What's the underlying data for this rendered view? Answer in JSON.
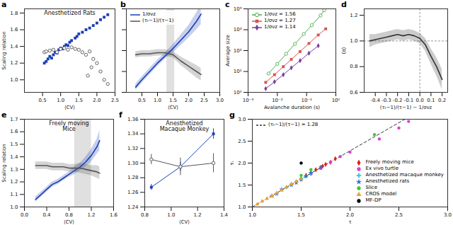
{
  "chart_data": [
    {
      "type": "scatter",
      "panel": "a",
      "annotation": "Anesthetized Rats",
      "x_label": "⟨CV⟩",
      "y_label": "Scaling relation",
      "xlim": [
        0,
        2.5
      ],
      "xticks": [
        0.5,
        {
          "value": 1,
          "label": "1.0"
        },
        1.5,
        {
          "value": 2,
          "label": "2.0"
        },
        2.5
      ],
      "ylim": [
        0.85,
        1.85
      ],
      "yticks": [
        {
          "value": 1,
          "label": "1.0"
        },
        1.2,
        1.4,
        1.6,
        1.8
      ],
      "series": [
        {
          "color": "#1a3fb5",
          "marker": "square",
          "x": [
            0.55,
            0.6,
            0.65,
            0.7,
            0.75,
            0.8,
            0.85,
            0.9,
            0.95,
            1.0,
            1.05,
            1.1,
            1.15,
            1.2,
            1.25,
            1.3,
            1.4,
            1.45,
            1.5,
            1.6,
            1.7,
            1.8,
            1.9,
            2.0,
            2.1,
            2.2,
            2.3
          ],
          "values": [
            1.2,
            1.22,
            1.25,
            1.28,
            1.26,
            1.3,
            1.33,
            1.32,
            1.36,
            1.38,
            1.37,
            1.4,
            1.42,
            1.41,
            1.45,
            1.47,
            1.5,
            1.52,
            1.55,
            1.57,
            1.6,
            1.62,
            1.65,
            1.68,
            1.72,
            1.75,
            1.78
          ]
        },
        {
          "color": "#555555",
          "marker": "open_circle",
          "x": [
            0.55,
            0.6,
            0.7,
            0.8,
            0.9,
            1.0,
            1.1,
            1.2,
            1.3,
            1.4,
            1.5,
            1.6,
            1.7,
            1.75,
            1.8,
            1.85,
            1.9,
            2.0,
            2.1,
            2.2,
            2.3
          ],
          "values": [
            1.33,
            1.34,
            1.35,
            1.36,
            1.33,
            1.37,
            1.38,
            1.36,
            1.39,
            1.37,
            1.36,
            1.33,
            1.3,
            1.05,
            1.34,
            1.15,
            1.25,
            1.2,
            1.1,
            1.0,
            0.95
          ]
        }
      ]
    },
    {
      "type": "line",
      "panel": "b",
      "x_label": "⟨CV⟩",
      "tick_labels": "x",
      "legend": "top-left",
      "xlim": [
        0,
        3
      ],
      "xticks": [
        0.5,
        {
          "value": 1,
          "label": "1.0"
        },
        1.5,
        {
          "value": 2,
          "label": "2.0"
        },
        2.5,
        {
          "value": 3,
          "label": "3.0"
        }
      ],
      "ylim": [
        1,
        1.8
      ],
      "yticks": [
        1,
        1.2,
        1.4,
        1.6,
        1.8
      ],
      "highlight_x": [
        1.3,
        1.55
      ],
      "x": [
        0.3,
        0.5,
        0.75,
        1.0,
        1.25,
        1.5,
        1.75,
        2.0,
        2.25,
        2.4
      ],
      "series": [
        {
          "name": "1/σνz",
          "color": "#1a3fb5",
          "values": [
            1.05,
            1.12,
            1.2,
            1.28,
            1.35,
            1.42,
            1.5,
            1.58,
            1.68,
            1.75
          ],
          "lower": [
            1.02,
            1.09,
            1.17,
            1.25,
            1.32,
            1.38,
            1.45,
            1.52,
            1.6,
            1.65
          ],
          "upper": [
            1.08,
            1.15,
            1.23,
            1.31,
            1.38,
            1.46,
            1.55,
            1.64,
            1.76,
            1.85
          ]
        },
        {
          "name": "(τₜ−1)/(τ−1)",
          "color": "#555555",
          "values": [
            1.36,
            1.37,
            1.37,
            1.38,
            1.38,
            1.36,
            1.3,
            1.25,
            1.2,
            1.17
          ],
          "lower": [
            1.33,
            1.34,
            1.34,
            1.35,
            1.35,
            1.33,
            1.26,
            1.2,
            1.14,
            1.11
          ],
          "upper": [
            1.39,
            1.4,
            1.4,
            1.41,
            1.41,
            1.39,
            1.34,
            1.3,
            1.26,
            1.23
          ]
        }
      ]
    },
    {
      "type": "line",
      "panel": "c",
      "log": true,
      "legend": "top-left",
      "x_label": "Avalanche duration (s)",
      "y_label": "Average size",
      "xlim": [
        0.001,
        1
      ],
      "xticks": [
        {
          "value": 0.001,
          "label": "10⁻³"
        },
        {
          "value": 0.01,
          "label": "10⁻²"
        },
        {
          "value": 0.1,
          "label": "10⁻¹"
        },
        {
          "value": 1,
          "label": "10⁰"
        }
      ],
      "ylim": [
        1,
        10000
      ],
      "yticks": [
        {
          "value": 1,
          "label": "10⁰"
        },
        {
          "value": 10,
          "label": "10¹"
        },
        {
          "value": 100,
          "label": "10²"
        },
        {
          "value": 1000,
          "label": "10³"
        },
        {
          "value": 10000,
          "label": "10⁴"
        }
      ],
      "series": [
        {
          "name": "1/σνz = 1.56",
          "color": "#4caf50",
          "marker": "open_circle",
          "x": [
            0.005,
            0.01,
            0.02,
            0.04,
            0.08,
            0.15,
            0.3,
            0.4
          ],
          "values": [
            8,
            23,
            70,
            210,
            620,
            1650,
            4800,
            8500
          ]
        },
        {
          "name": "1/σνz = 1.27",
          "color": "#d9534f",
          "marker": "square",
          "x": [
            0.004,
            0.008,
            0.016,
            0.03,
            0.06,
            0.12,
            0.25,
            0.45
          ],
          "values": [
            3,
            7,
            17,
            38,
            90,
            220,
            560,
            1100
          ]
        },
        {
          "name": "1/σνz = 1.14",
          "color": "#7b3fa0",
          "marker": "diamond",
          "x": [
            0.004,
            0.008,
            0.016,
            0.03,
            0.06,
            0.12,
            0.25
          ],
          "values": [
            1.5,
            3.2,
            7,
            15,
            33,
            75,
            170
          ]
        }
      ]
    },
    {
      "type": "line",
      "panel": "d",
      "x_label": "(τₜ−1)/(τ−1) − 1/σνz",
      "y_label": "⟨α⟩",
      "xlim": [
        -0.5,
        0.25
      ],
      "xticks": [
        -0.4,
        -0.3,
        -0.2,
        -0.1,
        {
          "value": 0,
          "label": "0.0"
        },
        0.1,
        0.2
      ],
      "ylim": [
        0.6,
        1.25
      ],
      "yticks": [
        0.6,
        0.8,
        {
          "value": 1,
          "label": "1.0"
        },
        1.2
      ],
      "reference_x": 0,
      "reference_y": 1,
      "x": [
        -0.45,
        -0.4,
        -0.35,
        -0.3,
        -0.25,
        -0.2,
        -0.15,
        -0.1,
        -0.05,
        0.0,
        0.05,
        0.1,
        0.15,
        0.2
      ],
      "series": [
        {
          "color": "#333333",
          "values": [
            1.0,
            1.01,
            1.02,
            1.03,
            1.04,
            1.05,
            1.04,
            1.05,
            1.04,
            1.02,
            0.97,
            0.88,
            0.8,
            0.7
          ],
          "lower": [
            0.95,
            0.97,
            0.98,
            0.99,
            1.0,
            1.01,
            1.0,
            1.01,
            1.0,
            0.98,
            0.92,
            0.82,
            0.73,
            0.62
          ],
          "upper": [
            1.05,
            1.05,
            1.06,
            1.07,
            1.08,
            1.09,
            1.08,
            1.09,
            1.08,
            1.06,
            1.02,
            0.94,
            0.87,
            0.78
          ]
        }
      ]
    },
    {
      "type": "line",
      "panel": "e",
      "annotation": "Freely moving\nMice",
      "x_label": "⟨CV⟩",
      "y_label": "Scaling relation",
      "xlim": [
        0,
        1.6
      ],
      "xticks": [
        {
          "value": 0,
          "label": "0.0"
        },
        0.4,
        0.8,
        1.2,
        1.6
      ],
      "ylim": [
        1,
        1.7
      ],
      "yticks": [
        {
          "value": 1,
          "label": "1.0"
        },
        1.1,
        1.2,
        1.3,
        1.4,
        1.5,
        1.6,
        1.7
      ],
      "highlight_x": [
        0.9,
        1.2
      ],
      "x": [
        0.2,
        0.3,
        0.4,
        0.5,
        0.6,
        0.7,
        0.8,
        0.9,
        1.0,
        1.1,
        1.2,
        1.3,
        1.35
      ],
      "series": [
        {
          "name": "1/σνz",
          "color": "#1a3fb5",
          "values": [
            1.06,
            1.1,
            1.14,
            1.18,
            1.2,
            1.23,
            1.26,
            1.29,
            1.32,
            1.36,
            1.41,
            1.48,
            1.53
          ],
          "lower": [
            1.04,
            1.08,
            1.12,
            1.16,
            1.18,
            1.21,
            1.24,
            1.26,
            1.29,
            1.32,
            1.36,
            1.42,
            1.45
          ],
          "upper": [
            1.08,
            1.12,
            1.16,
            1.2,
            1.22,
            1.25,
            1.28,
            1.32,
            1.35,
            1.4,
            1.46,
            1.54,
            1.61
          ]
        },
        {
          "name": "(τₜ−1)/(τ−1)",
          "color": "#555555",
          "values": [
            1.33,
            1.33,
            1.33,
            1.32,
            1.32,
            1.32,
            1.31,
            1.31,
            1.31,
            1.3,
            1.29,
            1.28,
            1.27
          ],
          "lower": [
            1.3,
            1.3,
            1.3,
            1.29,
            1.29,
            1.29,
            1.28,
            1.28,
            1.27,
            1.26,
            1.25,
            1.23,
            1.22
          ],
          "upper": [
            1.36,
            1.36,
            1.36,
            1.35,
            1.35,
            1.35,
            1.34,
            1.34,
            1.35,
            1.34,
            1.33,
            1.33,
            1.32
          ]
        }
      ]
    },
    {
      "type": "line",
      "panel": "f",
      "annotation": "Anesthetized\nMacaque Monkey",
      "x_label": "⟨CV⟩",
      "xlim": [
        0.8,
        1.4
      ],
      "xticks": [
        0.8,
        {
          "value": 1,
          "label": "1.0"
        },
        1.2,
        1.4
      ],
      "ylim": [
        1.24,
        1.36
      ],
      "yticks": [
        1.24,
        1.26,
        1.28,
        {
          "value": 1.3,
          "label": "1.30"
        },
        1.32,
        1.34,
        1.36
      ],
      "x": [
        0.85,
        1.07,
        1.32
      ],
      "series": [
        {
          "name": "1/σνz",
          "color": "#1a3fb5",
          "marker": "square",
          "values": [
            1.267,
            1.295,
            1.34
          ],
          "error": [
            0.004,
            0.006,
            0.007
          ]
        },
        {
          "name": "(τₜ−1)/(τ−1)",
          "color": "#555555",
          "marker": "open_circle",
          "values": [
            1.305,
            1.295,
            1.3
          ],
          "error": [
            0.007,
            0.012,
            0.013
          ]
        }
      ]
    },
    {
      "type": "scatter",
      "panel": "g",
      "legend": "bottom-right",
      "x_label": "τ",
      "y_label": "τₜ",
      "xlim": [
        1,
        3
      ],
      "xticks": [
        {
          "value": 1,
          "label": "1.0"
        },
        1.5,
        {
          "value": 2,
          "label": "2.0"
        },
        2.5,
        {
          "value": 3,
          "label": "3.0"
        }
      ],
      "ylim": [
        1,
        3
      ],
      "yticks": [
        {
          "value": 1,
          "label": "1.0"
        },
        1.5,
        {
          "value": 2,
          "label": "2.0"
        },
        2.5,
        {
          "value": 3,
          "label": "3.0"
        }
      ],
      "reference_line": {
        "origin": [
          1,
          1
        ],
        "slope": 1.28,
        "label": "(τₜ−1)/(τ−1) = 1.28",
        "line_style": "dashed"
      },
      "series": [
        {
          "name": "Freely moving mice",
          "color": "#e0201b",
          "marker": "diamond",
          "x": [
            1.5,
            1.55,
            1.6,
            1.65,
            1.7,
            1.72,
            1.75,
            1.8,
            1.85
          ],
          "values": [
            1.65,
            1.72,
            1.78,
            1.85,
            1.9,
            1.93,
            1.97,
            2.02,
            2.1
          ]
        },
        {
          "name": "Ex vivo turtle",
          "color": "#d63fd6",
          "marker": "circle",
          "x": [
            1.6,
            1.7,
            1.8,
            1.9,
            2.0,
            2.3,
            2.5,
            2.6
          ],
          "values": [
            1.75,
            1.88,
            2.02,
            2.15,
            2.25,
            2.55,
            2.8,
            2.95
          ]
        },
        {
          "name": "Anesthetized macaque monkey",
          "color": "#33ccdd",
          "marker": "cross",
          "x": [
            1.35,
            1.4,
            1.45,
            1.5,
            1.55,
            1.6
          ],
          "values": [
            1.45,
            1.52,
            1.58,
            1.65,
            1.7,
            1.77
          ]
        },
        {
          "name": "Anesthetized rats",
          "color": "#3b6fd6",
          "marker": "star",
          "x": [
            1.2,
            1.25,
            1.3,
            1.4,
            1.45,
            1.5,
            1.55,
            1.6,
            1.7
          ],
          "values": [
            1.25,
            1.3,
            1.4,
            1.5,
            1.55,
            1.62,
            1.7,
            1.78,
            1.9
          ]
        },
        {
          "name": "Slice",
          "color": "#33cc33",
          "marker": "circle",
          "x": [
            1.5,
            1.6,
            2.25
          ],
          "values": [
            1.72,
            1.85,
            2.65
          ]
        },
        {
          "name": "CROS model",
          "color": "#f0a030",
          "marker": "triangle",
          "x": [
            1.05,
            1.1,
            1.15,
            1.2,
            1.25,
            1.3,
            1.35,
            1.4,
            1.45,
            1.5
          ],
          "values": [
            1.06,
            1.13,
            1.19,
            1.25,
            1.32,
            1.38,
            1.45,
            1.52,
            1.58,
            1.64
          ]
        },
        {
          "name": "MF-DP",
          "color": "#000000",
          "marker": "circle",
          "x": [
            1.5
          ],
          "values": [
            2.0
          ]
        }
      ]
    }
  ]
}
